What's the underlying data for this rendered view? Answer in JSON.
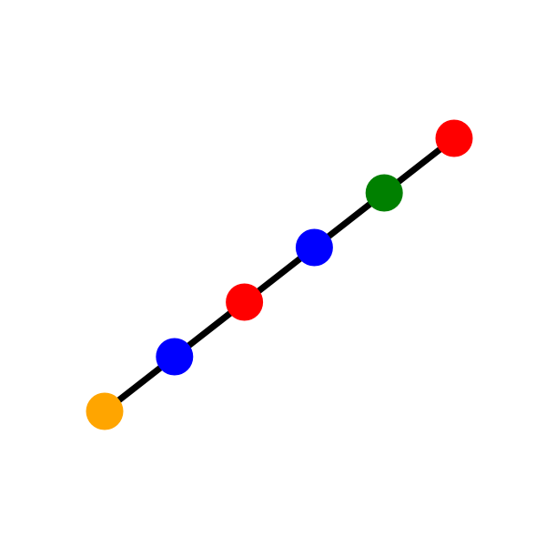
{
  "diagram": {
    "line_color": "#000000",
    "nodes": [
      {
        "id": "node-1",
        "color": "#FFA500"
      },
      {
        "id": "node-2",
        "color": "#0000FF"
      },
      {
        "id": "node-3",
        "color": "#FF0000"
      },
      {
        "id": "node-4",
        "color": "#0000FF"
      },
      {
        "id": "node-5",
        "color": "#008000"
      },
      {
        "id": "node-6",
        "color": "#FF0000"
      }
    ]
  }
}
